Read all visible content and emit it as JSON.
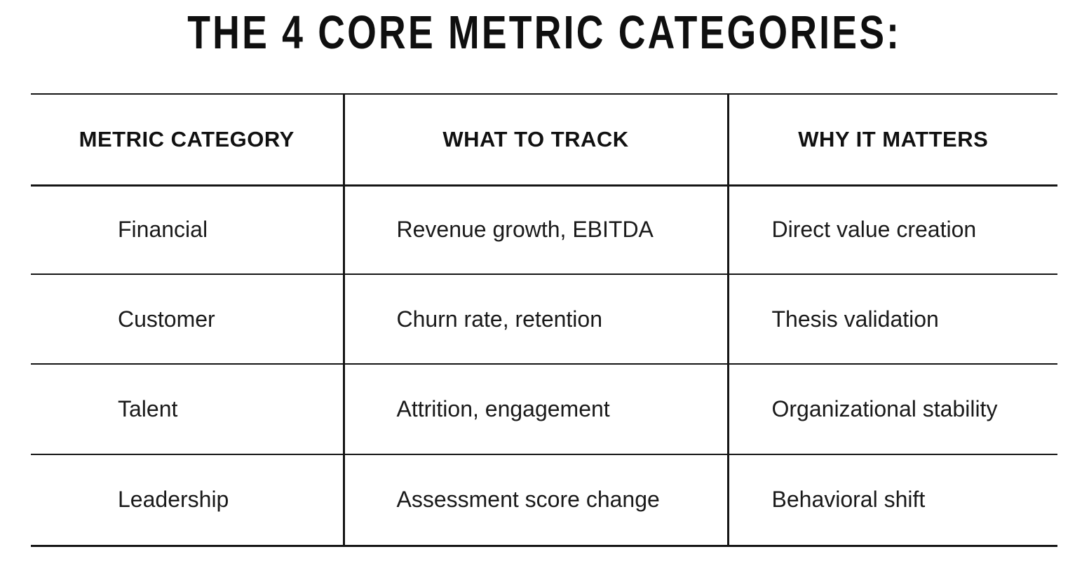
{
  "page": {
    "background": "#ffffff",
    "text_color": "#1a1a1a",
    "rule_color": "#151515"
  },
  "title": "THE 4 CORE METRIC CATEGORIES:",
  "table": {
    "headers": [
      "METRIC CATEGORY",
      "WHAT TO TRACK",
      "WHY IT MATTERS"
    ],
    "rows": [
      [
        "Financial",
        "Revenue growth, EBITDA",
        "Direct value creation"
      ],
      [
        "Customer",
        "Churn rate, retention",
        "Thesis validation"
      ],
      [
        "Talent",
        "Attrition, engagement",
        "Organizational stability"
      ],
      [
        "Leadership",
        "Assessment score change",
        "Behavioral shift"
      ]
    ]
  }
}
